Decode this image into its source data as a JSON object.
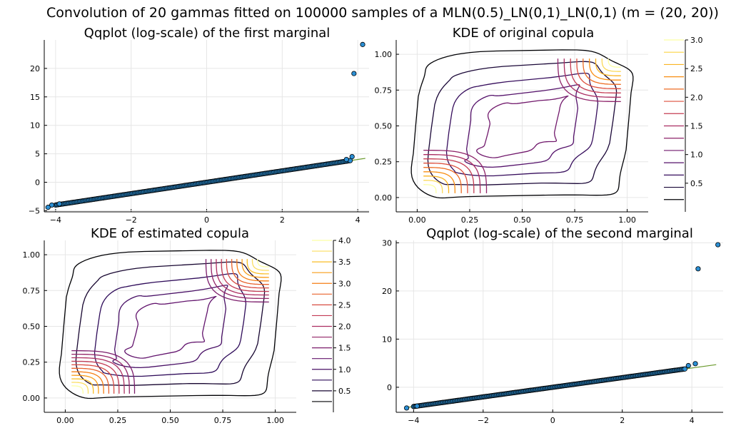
{
  "figure_title": "Convolution of 20 gammas fitted on 100000 samples of a MLN(0.5)_LN(0,1)_LN(0,1) (m = (20, 20))",
  "colors": {
    "points": "#2b8fd4",
    "point_outline": "#000000",
    "reference_line": "#6a9a2c",
    "contour_palette": [
      "#000004",
      "#2b0b57",
      "#5c126e",
      "#8a226a",
      "#b8325e",
      "#e0513a",
      "#f8850f",
      "#fac228",
      "#fcffa4"
    ]
  },
  "chart_data": [
    {
      "id": "qq1",
      "type": "scatter",
      "title": "Qqplot (log-scale) of the first marginal",
      "xlim": [
        -4.3,
        4.3
      ],
      "ylim": [
        -5.2,
        25
      ],
      "xticks": [
        -4,
        -2,
        0,
        2,
        4
      ],
      "yticks": [
        -5,
        0,
        5,
        10,
        15,
        20
      ],
      "tick_labels_x": [
        "−4",
        "−2",
        "0",
        "2",
        "4"
      ],
      "tick_labels_y": [
        "−5",
        "0",
        "5",
        "10",
        "15",
        "20"
      ],
      "reference_line": [
        [
          -4.2,
          -4.2
        ],
        [
          4.2,
          4.2
        ]
      ],
      "outliers": [
        [
          3.9,
          19.1
        ],
        [
          4.13,
          24.2
        ],
        [
          3.85,
          4.5
        ],
        [
          3.7,
          4.0
        ],
        [
          -4.1,
          -4.0
        ],
        [
          -4.2,
          -4.4
        ],
        [
          -3.9,
          -3.8
        ]
      ],
      "bulk_range": [
        -4.0,
        3.8
      ]
    },
    {
      "id": "kde_orig",
      "type": "contour",
      "title": "KDE of original copula",
      "xlim": [
        -0.1,
        1.1
      ],
      "ylim": [
        -0.1,
        1.1
      ],
      "xticks": [
        0,
        0.25,
        0.5,
        0.75,
        1
      ],
      "yticks": [
        0,
        0.25,
        0.5,
        0.75,
        1
      ],
      "tick_labels_x": [
        "0.00",
        "0.25",
        "0.50",
        "0.75",
        "1.00"
      ],
      "tick_labels_y": [
        "0.00",
        "0.25",
        "0.50",
        "0.75",
        "1.00"
      ],
      "colorbar": {
        "min": 0,
        "max": 3.0,
        "ticks": [
          0.5,
          1.0,
          1.5,
          2.0,
          2.5,
          3.0
        ],
        "labels": [
          "0.5",
          "1.0",
          "1.5",
          "2.0",
          "2.5",
          "3.0"
        ],
        "levels": 14
      }
    },
    {
      "id": "kde_est",
      "type": "contour",
      "title": "KDE of estimated copula",
      "xlim": [
        -0.1,
        1.1
      ],
      "ylim": [
        -0.1,
        1.1
      ],
      "xticks": [
        0,
        0.25,
        0.5,
        0.75,
        1
      ],
      "yticks": [
        0,
        0.25,
        0.5,
        0.75,
        1
      ],
      "tick_labels_x": [
        "0.00",
        "0.25",
        "0.50",
        "0.75",
        "1.00"
      ],
      "tick_labels_y": [
        "0.00",
        "0.25",
        "0.50",
        "0.75",
        "1.00"
      ],
      "colorbar": {
        "min": 0,
        "max": 4.0,
        "ticks": [
          0.5,
          1.0,
          1.5,
          2.0,
          2.5,
          3.0,
          3.5,
          4.0
        ],
        "labels": [
          "0.5",
          "1.0",
          "1.5",
          "2.0",
          "2.5",
          "3.0",
          "3.5",
          "4.0"
        ],
        "levels": 16
      }
    },
    {
      "id": "qq2",
      "type": "scatter",
      "title": "Qqplot (log-scale) of the second marginal",
      "xlim": [
        -4.5,
        4.9
      ],
      "ylim": [
        -5.2,
        30.5
      ],
      "xticks": [
        -4,
        -2,
        0,
        2,
        4
      ],
      "yticks": [
        0,
        10,
        20,
        30
      ],
      "tick_labels_x": [
        "−4",
        "−2",
        "0",
        "2",
        "4"
      ],
      "tick_labels_y": [
        "0",
        "10",
        "20",
        "30"
      ],
      "reference_line": [
        [
          -4.2,
          -4.2
        ],
        [
          4.7,
          4.7
        ]
      ],
      "outliers": [
        [
          4.75,
          29.6
        ],
        [
          4.18,
          24.6
        ],
        [
          4.1,
          4.9
        ],
        [
          3.9,
          4.5
        ],
        [
          -4.2,
          -4.3
        ],
        [
          -3.9,
          -3.9
        ]
      ],
      "bulk_range": [
        -4.0,
        3.8
      ]
    }
  ]
}
